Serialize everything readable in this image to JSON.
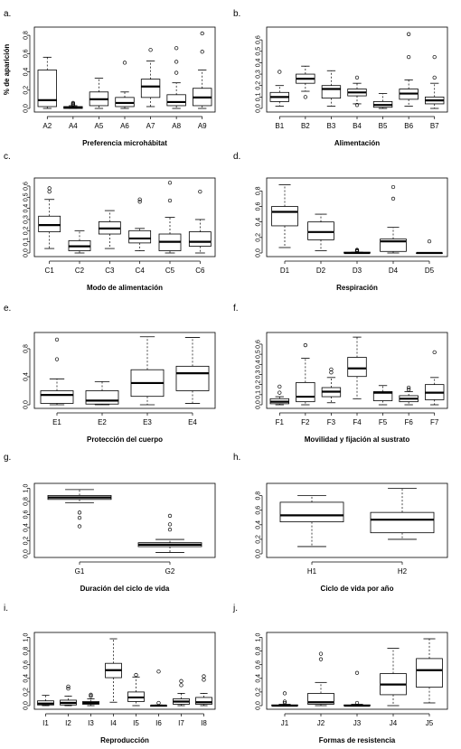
{
  "chart_data": [
    {
      "type": "boxplot",
      "panel_letter": "a.",
      "xlabel": "Preferencia microhábitat",
      "ylabel": "% de aparición",
      "ylim": [
        0,
        0.85
      ],
      "yticks": [
        0.0,
        0.2,
        0.4,
        0.6,
        0.8
      ],
      "categories": [
        "A2",
        "A4",
        "A5",
        "A6",
        "A7",
        "A8",
        "A9"
      ],
      "boxes": [
        {
          "min": 0.0,
          "q1": 0.02,
          "median": 0.09,
          "q3": 0.42,
          "max": 0.56,
          "outliers": []
        },
        {
          "min": 0.0,
          "q1": 0.0,
          "median": 0.01,
          "q3": 0.02,
          "max": 0.03,
          "outliers": [
            0.04,
            0.05,
            0.06
          ]
        },
        {
          "min": 0.0,
          "q1": 0.03,
          "median": 0.1,
          "q3": 0.18,
          "max": 0.33,
          "outliers": []
        },
        {
          "min": 0.0,
          "q1": 0.02,
          "median": 0.06,
          "q3": 0.12,
          "max": 0.18,
          "outliers": [
            0.5
          ]
        },
        {
          "min": 0.02,
          "q1": 0.12,
          "median": 0.24,
          "q3": 0.32,
          "max": 0.52,
          "outliers": [
            0.64
          ]
        },
        {
          "min": 0.0,
          "q1": 0.03,
          "median": 0.07,
          "q3": 0.15,
          "max": 0.28,
          "outliers": [
            0.39,
            0.51,
            0.66
          ]
        },
        {
          "min": 0.0,
          "q1": 0.03,
          "median": 0.12,
          "q3": 0.22,
          "max": 0.42,
          "outliers": [
            0.62,
            0.82
          ]
        }
      ]
    },
    {
      "type": "boxplot",
      "panel_letter": "b.",
      "xlabel": "Alimentación",
      "ylabel": "",
      "ylim": [
        0,
        0.68
      ],
      "yticks": [
        0.0,
        0.1,
        0.2,
        0.3,
        0.4,
        0.5,
        0.6
      ],
      "categories": [
        "B1",
        "B2",
        "B3",
        "B4",
        "B5",
        "B6",
        "B7"
      ],
      "boxes": [
        {
          "min": 0.02,
          "q1": 0.06,
          "median": 0.1,
          "q3": 0.14,
          "max": 0.2,
          "outliers": [
            0.32
          ]
        },
        {
          "min": 0.15,
          "q1": 0.22,
          "median": 0.26,
          "q3": 0.3,
          "max": 0.37,
          "outliers": [
            0.1
          ]
        },
        {
          "min": 0.02,
          "q1": 0.09,
          "median": 0.17,
          "q3": 0.2,
          "max": 0.33,
          "outliers": []
        },
        {
          "min": 0.04,
          "q1": 0.11,
          "median": 0.14,
          "q3": 0.17,
          "max": 0.22,
          "outliers": [
            0.03,
            0.27
          ]
        },
        {
          "min": 0.0,
          "q1": 0.01,
          "median": 0.03,
          "q3": 0.06,
          "max": 0.13,
          "outliers": []
        },
        {
          "min": 0.02,
          "q1": 0.08,
          "median": 0.13,
          "q3": 0.17,
          "max": 0.25,
          "outliers": [
            0.45,
            0.65
          ]
        },
        {
          "min": 0.0,
          "q1": 0.04,
          "median": 0.07,
          "q3": 0.1,
          "max": 0.22,
          "outliers": [
            0.27,
            0.45
          ]
        }
      ]
    },
    {
      "type": "boxplot",
      "panel_letter": "c.",
      "xlabel": "Modo de alimentación",
      "ylabel": "",
      "ylim": [
        0,
        0.64
      ],
      "yticks": [
        0.0,
        0.1,
        0.2,
        0.3,
        0.4,
        0.5,
        0.6
      ],
      "categories": [
        "C1",
        "C2",
        "C3",
        "C4",
        "C5",
        "C6"
      ],
      "boxes": [
        {
          "min": 0.04,
          "q1": 0.19,
          "median": 0.25,
          "q3": 0.33,
          "max": 0.48,
          "outliers": [
            0.55,
            0.58
          ]
        },
        {
          "min": 0.0,
          "q1": 0.02,
          "median": 0.06,
          "q3": 0.11,
          "max": 0.2,
          "outliers": []
        },
        {
          "min": 0.04,
          "q1": 0.17,
          "median": 0.22,
          "q3": 0.28,
          "max": 0.38,
          "outliers": []
        },
        {
          "min": 0.02,
          "q1": 0.09,
          "median": 0.13,
          "q3": 0.2,
          "max": 0.22,
          "outliers": [
            0.46,
            0.48
          ]
        },
        {
          "min": 0.0,
          "q1": 0.02,
          "median": 0.1,
          "q3": 0.17,
          "max": 0.32,
          "outliers": [
            0.47,
            0.63
          ]
        },
        {
          "min": 0.0,
          "q1": 0.06,
          "median": 0.1,
          "q3": 0.19,
          "max": 0.3,
          "outliers": [
            0.55
          ]
        }
      ]
    },
    {
      "type": "boxplot",
      "panel_letter": "d.",
      "xlabel": "Respiración",
      "ylabel": "",
      "ylim": [
        0,
        0.92
      ],
      "yticks": [
        0.0,
        0.2,
        0.4,
        0.6,
        0.8
      ],
      "categories": [
        "D1",
        "D2",
        "D3",
        "D4",
        "D5"
      ],
      "boxes": [
        {
          "min": 0.07,
          "q1": 0.35,
          "median": 0.53,
          "q3": 0.6,
          "max": 0.88,
          "outliers": []
        },
        {
          "min": 0.03,
          "q1": 0.17,
          "median": 0.27,
          "q3": 0.4,
          "max": 0.5,
          "outliers": []
        },
        {
          "min": 0.0,
          "q1": 0.0,
          "median": 0.0,
          "q3": 0.01,
          "max": 0.01,
          "outliers": [
            0.02,
            0.03,
            0.04
          ]
        },
        {
          "min": 0.0,
          "q1": 0.02,
          "median": 0.15,
          "q3": 0.18,
          "max": 0.33,
          "outliers": [
            0.7,
            0.85
          ]
        },
        {
          "min": 0.0,
          "q1": 0.0,
          "median": 0.0,
          "q3": 0.0,
          "max": 0.0,
          "outliers": [
            0.15
          ]
        }
      ]
    },
    {
      "type": "boxplot",
      "panel_letter": "e.",
      "xlabel": "Protección del cuerpo",
      "ylabel": "",
      "ylim": [
        0,
        0.98
      ],
      "yticks": [
        0.0,
        0.4,
        0.8
      ],
      "categories": [
        "E1",
        "E2",
        "E3",
        "E4"
      ],
      "boxes": [
        {
          "min": 0.0,
          "q1": 0.02,
          "median": 0.14,
          "q3": 0.2,
          "max": 0.37,
          "outliers": [
            0.65,
            0.93
          ]
        },
        {
          "min": 0.0,
          "q1": 0.01,
          "median": 0.06,
          "q3": 0.2,
          "max": 0.33,
          "outliers": []
        },
        {
          "min": 0.0,
          "q1": 0.12,
          "median": 0.31,
          "q3": 0.5,
          "max": 0.97,
          "outliers": []
        },
        {
          "min": 0.02,
          "q1": 0.2,
          "median": 0.45,
          "q3": 0.55,
          "max": 0.96,
          "outliers": []
        }
      ]
    },
    {
      "type": "boxplot",
      "panel_letter": "f.",
      "xlabel": "Movilidad y fijación al sustrato",
      "ylabel": "",
      "ylim": [
        0,
        0.68
      ],
      "yticks": [
        0.0,
        0.1,
        0.2,
        0.3,
        0.4,
        0.5,
        0.6
      ],
      "categories": [
        "F1",
        "F2",
        "F3",
        "F4",
        "F5",
        "F6",
        "F7"
      ],
      "boxes": [
        {
          "min": 0.0,
          "q1": 0.01,
          "median": 0.03,
          "q3": 0.06,
          "max": 0.08,
          "outliers": [
            0.12,
            0.18
          ]
        },
        {
          "min": 0.0,
          "q1": 0.03,
          "median": 0.08,
          "q3": 0.22,
          "max": 0.46,
          "outliers": [
            0.59
          ]
        },
        {
          "min": 0.02,
          "q1": 0.08,
          "median": 0.13,
          "q3": 0.17,
          "max": 0.27,
          "outliers": [
            0.32,
            0.35
          ]
        },
        {
          "min": 0.06,
          "q1": 0.28,
          "median": 0.36,
          "q3": 0.47,
          "max": 0.67,
          "outliers": []
        },
        {
          "min": 0.0,
          "q1": 0.04,
          "median": 0.12,
          "q3": 0.13,
          "max": 0.19,
          "outliers": []
        },
        {
          "min": 0.0,
          "q1": 0.03,
          "median": 0.06,
          "q3": 0.09,
          "max": 0.13,
          "outliers": [
            0.15,
            0.17
          ]
        },
        {
          "min": 0.0,
          "q1": 0.05,
          "median": 0.12,
          "q3": 0.2,
          "max": 0.27,
          "outliers": [
            0.52
          ]
        }
      ]
    },
    {
      "type": "boxplot",
      "panel_letter": "g.",
      "xlabel": "Duración del ciclo de vida",
      "ylabel": "",
      "ylim": [
        0,
        1.02
      ],
      "yticks": [
        0.0,
        0.2,
        0.4,
        0.6,
        0.8,
        1.0
      ],
      "categories": [
        "G1",
        "G2"
      ],
      "boxes": [
        {
          "min": 0.78,
          "q1": 0.83,
          "median": 0.86,
          "q3": 0.89,
          "max": 0.98,
          "outliers": [
            0.42,
            0.55,
            0.63
          ]
        },
        {
          "min": 0.02,
          "q1": 0.11,
          "median": 0.14,
          "q3": 0.17,
          "max": 0.22,
          "outliers": [
            0.37,
            0.45,
            0.58
          ]
        }
      ]
    },
    {
      "type": "boxplot",
      "panel_letter": "h.",
      "xlabel": "Ciclo de vida por año",
      "ylabel": "",
      "ylim": [
        0,
        0.92
      ],
      "yticks": [
        0.0,
        0.2,
        0.4,
        0.6,
        0.8
      ],
      "categories": [
        "H1",
        "H2"
      ],
      "boxes": [
        {
          "min": 0.1,
          "q1": 0.44,
          "median": 0.53,
          "q3": 0.71,
          "max": 0.8,
          "outliers": []
        },
        {
          "min": 0.2,
          "q1": 0.29,
          "median": 0.47,
          "q3": 0.57,
          "max": 0.9,
          "outliers": []
        }
      ]
    },
    {
      "type": "boxplot",
      "panel_letter": "i.",
      "xlabel": "Reproducción",
      "ylabel": "",
      "ylim": [
        0,
        1.02
      ],
      "yticks": [
        0.0,
        0.2,
        0.4,
        0.6,
        0.8,
        1.0
      ],
      "categories": [
        "I1",
        "I2",
        "I3",
        "I4",
        "I5",
        "I6",
        "I7",
        "I8"
      ],
      "boxes": [
        {
          "min": 0.0,
          "q1": 0.01,
          "median": 0.03,
          "q3": 0.07,
          "max": 0.15,
          "outliers": []
        },
        {
          "min": 0.0,
          "q1": 0.01,
          "median": 0.04,
          "q3": 0.08,
          "max": 0.14,
          "outliers": [
            0.25,
            0.28
          ]
        },
        {
          "min": 0.0,
          "q1": 0.02,
          "median": 0.04,
          "q3": 0.06,
          "max": 0.1,
          "outliers": [
            0.14,
            0.16
          ]
        },
        {
          "min": 0.05,
          "q1": 0.41,
          "median": 0.52,
          "q3": 0.62,
          "max": 0.98,
          "outliers": []
        },
        {
          "min": 0.0,
          "q1": 0.06,
          "median": 0.12,
          "q3": 0.2,
          "max": 0.42,
          "outliers": [
            0.45
          ]
        },
        {
          "min": 0.0,
          "q1": 0.0,
          "median": 0.0,
          "q3": 0.0,
          "max": 0.01,
          "outliers": [
            0.04,
            0.5
          ]
        },
        {
          "min": 0.0,
          "q1": 0.02,
          "median": 0.06,
          "q3": 0.1,
          "max": 0.18,
          "outliers": [
            0.3,
            0.36
          ]
        },
        {
          "min": 0.0,
          "q1": 0.02,
          "median": 0.05,
          "q3": 0.12,
          "max": 0.18,
          "outliers": [
            0.38,
            0.43
          ]
        }
      ]
    },
    {
      "type": "boxplot",
      "panel_letter": "j.",
      "xlabel": "Formas de resistencia",
      "ylabel": "",
      "ylim": [
        0,
        1.02
      ],
      "yticks": [
        0.0,
        0.2,
        0.4,
        0.6,
        0.8,
        1.0
      ],
      "categories": [
        "J1",
        "J2",
        "J3",
        "J4",
        "J5"
      ],
      "boxes": [
        {
          "min": 0.0,
          "q1": 0.0,
          "median": 0.0,
          "q3": 0.01,
          "max": 0.02,
          "outliers": [
            0.04,
            0.06,
            0.18
          ]
        },
        {
          "min": 0.0,
          "q1": 0.02,
          "median": 0.05,
          "q3": 0.18,
          "max": 0.34,
          "outliers": [
            0.68,
            0.76
          ]
        },
        {
          "min": 0.0,
          "q1": 0.0,
          "median": 0.0,
          "q3": 0.01,
          "max": 0.02,
          "outliers": [
            0.04,
            0.48
          ]
        },
        {
          "min": 0.0,
          "q1": 0.16,
          "median": 0.31,
          "q3": 0.47,
          "max": 0.84,
          "outliers": []
        },
        {
          "min": 0.04,
          "q1": 0.27,
          "median": 0.52,
          "q3": 0.69,
          "max": 0.98,
          "outliers": []
        }
      ]
    }
  ]
}
